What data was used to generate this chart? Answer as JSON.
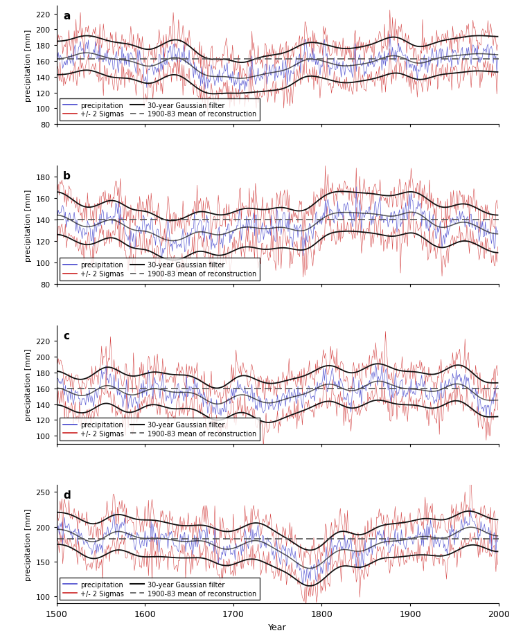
{
  "panels": [
    {
      "label": "a",
      "ylim": [
        80,
        230
      ],
      "yticks": [
        80,
        100,
        120,
        140,
        160,
        180,
        200,
        220
      ],
      "mean": 163,
      "sigma": 18,
      "blue_mean": 163,
      "blue_sigma": 8,
      "gauss_amplitude": 20,
      "gauss_dip_year": 1725,
      "gauss_dip_depth": 30
    },
    {
      "label": "b",
      "ylim": [
        80,
        190
      ],
      "yticks": [
        80,
        100,
        120,
        140,
        160,
        180
      ],
      "mean": 140,
      "sigma": 15,
      "blue_mean": 140,
      "blue_sigma": 7,
      "gauss_amplitude": 15,
      "gauss_dip_year": 1660,
      "gauss_dip_depth": 25
    },
    {
      "label": "c",
      "ylim": [
        90,
        240
      ],
      "yticks": [
        100,
        120,
        140,
        160,
        180,
        200,
        220
      ],
      "mean": 160,
      "sigma": 18,
      "blue_mean": 160,
      "blue_sigma": 8,
      "gauss_amplitude": 20,
      "gauss_dip_year": 1690,
      "gauss_dip_depth": 20
    },
    {
      "label": "d",
      "ylim": [
        90,
        260
      ],
      "yticks": [
        100,
        150,
        200,
        250
      ],
      "mean": 183,
      "sigma": 20,
      "blue_mean": 183,
      "blue_sigma": 9,
      "gauss_amplitude": 25,
      "gauss_dip_year": 1780,
      "gauss_dip_depth": 35
    }
  ],
  "xlim": [
    1500,
    2000
  ],
  "xticks": [
    1500,
    1600,
    1700,
    1800,
    1900,
    2000
  ],
  "red_color": "#cc2222",
  "blue_color": "#4444cc",
  "black_color": "#111111",
  "dash_color": "#555555",
  "legend_items": [
    [
      "precipitation",
      "30-year Gaussian filter"
    ],
    [
      "+/- 2 Sigmas",
      "1900-83 mean of reconstruction"
    ]
  ]
}
